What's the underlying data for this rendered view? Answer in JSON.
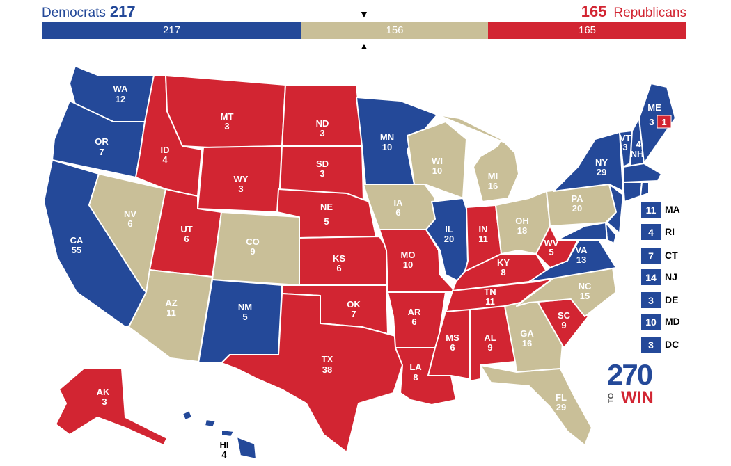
{
  "header": {
    "dem_label": "Democrats",
    "dem_total": "217",
    "rep_total": "165",
    "rep_label": "Republicans"
  },
  "bar": {
    "dem": "217",
    "tossup": "156",
    "rep": "165"
  },
  "colors": {
    "dem": "#244999",
    "rep": "#d22532",
    "tossup": "#c9bf98"
  },
  "states": {
    "WA": {
      "abbr": "WA",
      "ev": "12"
    },
    "OR": {
      "abbr": "OR",
      "ev": "7"
    },
    "CA": {
      "abbr": "CA",
      "ev": "55"
    },
    "NV": {
      "abbr": "NV",
      "ev": "6"
    },
    "ID": {
      "abbr": "ID",
      "ev": "4"
    },
    "MT": {
      "abbr": "MT",
      "ev": "3"
    },
    "WY": {
      "abbr": "WY",
      "ev": "3"
    },
    "UT": {
      "abbr": "UT",
      "ev": "6"
    },
    "AZ": {
      "abbr": "AZ",
      "ev": "11"
    },
    "CO": {
      "abbr": "CO",
      "ev": "9"
    },
    "NM": {
      "abbr": "NM",
      "ev": "5"
    },
    "ND": {
      "abbr": "ND",
      "ev": "3"
    },
    "SD": {
      "abbr": "SD",
      "ev": "3"
    },
    "NE": {
      "abbr": "NE",
      "ev": "5"
    },
    "KS": {
      "abbr": "KS",
      "ev": "6"
    },
    "OK": {
      "abbr": "OK",
      "ev": "7"
    },
    "TX": {
      "abbr": "TX",
      "ev": "38"
    },
    "MN": {
      "abbr": "MN",
      "ev": "10"
    },
    "IA": {
      "abbr": "IA",
      "ev": "6"
    },
    "MO": {
      "abbr": "MO",
      "ev": "10"
    },
    "AR": {
      "abbr": "AR",
      "ev": "6"
    },
    "LA": {
      "abbr": "LA",
      "ev": "8"
    },
    "WI": {
      "abbr": "WI",
      "ev": "10"
    },
    "IL": {
      "abbr": "IL",
      "ev": "20"
    },
    "MI": {
      "abbr": "MI",
      "ev": "16"
    },
    "IN": {
      "abbr": "IN",
      "ev": "11"
    },
    "OH": {
      "abbr": "OH",
      "ev": "18"
    },
    "KY": {
      "abbr": "KY",
      "ev": "8"
    },
    "TN": {
      "abbr": "TN",
      "ev": "11"
    },
    "MS": {
      "abbr": "MS",
      "ev": "6"
    },
    "AL": {
      "abbr": "AL",
      "ev": "9"
    },
    "GA": {
      "abbr": "GA",
      "ev": "16"
    },
    "FL": {
      "abbr": "FL",
      "ev": "29"
    },
    "SC": {
      "abbr": "SC",
      "ev": "9"
    },
    "NC": {
      "abbr": "NC",
      "ev": "15"
    },
    "VA": {
      "abbr": "VA",
      "ev": "13"
    },
    "WV": {
      "abbr": "WV",
      "ev": "5"
    },
    "PA": {
      "abbr": "PA",
      "ev": "20"
    },
    "NY": {
      "abbr": "NY",
      "ev": "29"
    },
    "VT": {
      "abbr": "VT",
      "ev": "3"
    },
    "NH": {
      "abbr": "NH",
      "ev": "4"
    },
    "ME": {
      "abbr": "ME",
      "ev": "3"
    },
    "ME2": {
      "ev": "1"
    },
    "AK": {
      "abbr": "AK",
      "ev": "3"
    },
    "HI": {
      "abbr": "HI",
      "ev": "4"
    }
  },
  "small_states": [
    {
      "ev": "11",
      "abbr": "MA"
    },
    {
      "ev": "4",
      "abbr": "RI"
    },
    {
      "ev": "7",
      "abbr": "CT"
    },
    {
      "ev": "14",
      "abbr": "NJ"
    },
    {
      "ev": "3",
      "abbr": "DE"
    },
    {
      "ev": "10",
      "abbr": "MD"
    },
    {
      "ev": "3",
      "abbr": "DC"
    }
  ],
  "logo": {
    "number": "270",
    "to": "TO",
    "win": "WIN"
  }
}
